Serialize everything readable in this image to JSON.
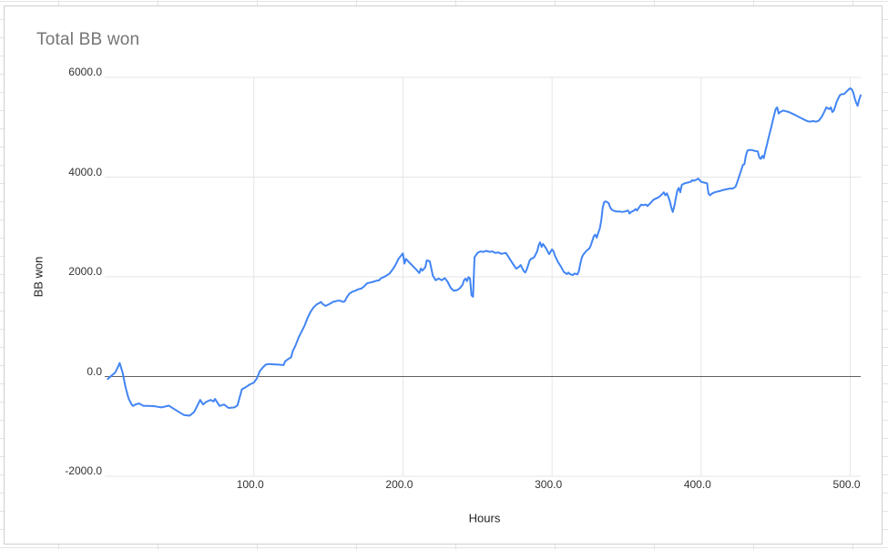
{
  "chart": {
    "title": "Total BB won",
    "x_axis": {
      "title": "Hours",
      "ticks": [
        {
          "label": "100.0",
          "value": 100
        },
        {
          "label": "200.0",
          "value": 200
        },
        {
          "label": "300.0",
          "value": 300
        },
        {
          "label": "400.0",
          "value": 400
        },
        {
          "label": "500.0",
          "value": 500
        }
      ]
    },
    "y_axis": {
      "title": "BB won",
      "ticks": [
        {
          "label": "6000.0",
          "value": 6000
        },
        {
          "label": "4000.0",
          "value": 4000
        },
        {
          "label": "2000.0",
          "value": 2000
        },
        {
          "label": "0.0",
          "value": 0
        },
        {
          "label": "-2000.0",
          "value": -2000
        }
      ]
    },
    "colors": {
      "series_line": "#4285f4",
      "gridline": "#e6e6e6",
      "zero_line": "#616161",
      "title_text": "#757575",
      "card_border": "#cfcfcf"
    }
  },
  "chart_data": {
    "type": "line",
    "title": "Total BB won",
    "xlabel": "Hours",
    "ylabel": "BB won",
    "xlim": [
      0,
      507
    ],
    "ylim": [
      -2000,
      6000
    ],
    "x_tick_step": 100,
    "y_tick_step": 2000,
    "grid": true,
    "legend": false,
    "series": [
      {
        "name": "Total BB won",
        "color": "#4285f4",
        "points": [
          [
            2,
            -50
          ],
          [
            5,
            30
          ],
          [
            7,
            80
          ],
          [
            9,
            200
          ],
          [
            10,
            270
          ],
          [
            12,
            80
          ],
          [
            14,
            -220
          ],
          [
            16,
            -440
          ],
          [
            18,
            -560
          ],
          [
            19,
            -590
          ],
          [
            21,
            -555
          ],
          [
            23,
            -540
          ],
          [
            26,
            -590
          ],
          [
            30,
            -590
          ],
          [
            34,
            -600
          ],
          [
            38,
            -620
          ],
          [
            43,
            -585
          ],
          [
            48,
            -680
          ],
          [
            53,
            -770
          ],
          [
            57,
            -785
          ],
          [
            60,
            -710
          ],
          [
            64,
            -470
          ],
          [
            66,
            -560
          ],
          [
            68,
            -510
          ],
          [
            71,
            -470
          ],
          [
            73,
            -500
          ],
          [
            74,
            -450
          ],
          [
            77,
            -590
          ],
          [
            80,
            -560
          ],
          [
            83,
            -630
          ],
          [
            87,
            -620
          ],
          [
            89,
            -580
          ],
          [
            92,
            -255
          ],
          [
            94,
            -225
          ],
          [
            97,
            -165
          ],
          [
            100,
            -120
          ],
          [
            102,
            -40
          ],
          [
            104,
            110
          ],
          [
            106,
            180
          ],
          [
            108,
            240
          ],
          [
            110,
            250
          ],
          [
            113,
            245
          ],
          [
            116,
            240
          ],
          [
            120,
            230
          ],
          [
            121,
            305
          ],
          [
            123,
            350
          ],
          [
            125,
            385
          ],
          [
            126,
            505
          ],
          [
            128,
            625
          ],
          [
            130,
            780
          ],
          [
            132,
            900
          ],
          [
            134,
            1020
          ],
          [
            136,
            1170
          ],
          [
            138,
            1295
          ],
          [
            140,
            1385
          ],
          [
            142,
            1445
          ],
          [
            144,
            1475
          ],
          [
            145,
            1495
          ],
          [
            146,
            1460
          ],
          [
            148,
            1415
          ],
          [
            151,
            1460
          ],
          [
            153,
            1495
          ],
          [
            156,
            1520
          ],
          [
            158,
            1520
          ],
          [
            160,
            1495
          ],
          [
            161,
            1510
          ],
          [
            162,
            1570
          ],
          [
            164,
            1660
          ],
          [
            166,
            1700
          ],
          [
            168,
            1720
          ],
          [
            170,
            1750
          ],
          [
            172,
            1765
          ],
          [
            174,
            1810
          ],
          [
            176,
            1870
          ],
          [
            178,
            1885
          ],
          [
            180,
            1900
          ],
          [
            182,
            1920
          ],
          [
            184,
            1930
          ],
          [
            185,
            1965
          ],
          [
            187,
            1995
          ],
          [
            189,
            2025
          ],
          [
            191,
            2065
          ],
          [
            193,
            2145
          ],
          [
            195,
            2235
          ],
          [
            197,
            2360
          ],
          [
            200,
            2470
          ],
          [
            201,
            2265
          ],
          [
            202,
            2360
          ],
          [
            204,
            2295
          ],
          [
            206,
            2235
          ],
          [
            209,
            2145
          ],
          [
            211,
            2075
          ],
          [
            212,
            2165
          ],
          [
            213,
            2125
          ],
          [
            215,
            2190
          ],
          [
            216,
            2330
          ],
          [
            218,
            2310
          ],
          [
            220,
            2025
          ],
          [
            222,
            1930
          ],
          [
            224,
            1965
          ],
          [
            226,
            1930
          ],
          [
            228,
            1975
          ],
          [
            230,
            1900
          ],
          [
            232,
            1780
          ],
          [
            234,
            1720
          ],
          [
            236,
            1730
          ],
          [
            238,
            1765
          ],
          [
            240,
            1840
          ],
          [
            241,
            1930
          ],
          [
            242,
            1965
          ],
          [
            243,
            1915
          ],
          [
            244,
            1995
          ],
          [
            245,
            1965
          ],
          [
            246,
            1630
          ],
          [
            247,
            1600
          ],
          [
            248,
            2390
          ],
          [
            250,
            2480
          ],
          [
            252,
            2510
          ],
          [
            254,
            2500
          ],
          [
            256,
            2520
          ],
          [
            258,
            2500
          ],
          [
            260,
            2510
          ],
          [
            262,
            2480
          ],
          [
            264,
            2490
          ],
          [
            266,
            2460
          ],
          [
            269,
            2480
          ],
          [
            271,
            2390
          ],
          [
            273,
            2295
          ],
          [
            275,
            2205
          ],
          [
            276,
            2165
          ],
          [
            278,
            2205
          ],
          [
            279,
            2235
          ],
          [
            281,
            2115
          ],
          [
            282,
            2085
          ],
          [
            283,
            2145
          ],
          [
            285,
            2330
          ],
          [
            286,
            2360
          ],
          [
            288,
            2390
          ],
          [
            290,
            2510
          ],
          [
            291,
            2630
          ],
          [
            292,
            2690
          ],
          [
            293,
            2600
          ],
          [
            294,
            2660
          ],
          [
            296,
            2570
          ],
          [
            298,
            2455
          ],
          [
            300,
            2550
          ],
          [
            301,
            2510
          ],
          [
            302,
            2420
          ],
          [
            304,
            2295
          ],
          [
            306,
            2205
          ],
          [
            308,
            2095
          ],
          [
            310,
            2055
          ],
          [
            311,
            2085
          ],
          [
            312,
            2055
          ],
          [
            314,
            2035
          ],
          [
            315,
            2065
          ],
          [
            317,
            2050
          ],
          [
            318,
            2115
          ],
          [
            319,
            2265
          ],
          [
            320,
            2390
          ],
          [
            321,
            2450
          ],
          [
            322,
            2480
          ],
          [
            323,
            2520
          ],
          [
            325,
            2570
          ],
          [
            326,
            2630
          ],
          [
            327,
            2720
          ],
          [
            328,
            2815
          ],
          [
            329,
            2845
          ],
          [
            330,
            2785
          ],
          [
            331,
            2885
          ],
          [
            332,
            2965
          ],
          [
            333,
            3120
          ],
          [
            334,
            3390
          ],
          [
            335,
            3500
          ],
          [
            336,
            3515
          ],
          [
            337,
            3495
          ],
          [
            338,
            3480
          ],
          [
            339,
            3390
          ],
          [
            340,
            3350
          ],
          [
            341,
            3330
          ],
          [
            343,
            3312
          ],
          [
            345,
            3312
          ],
          [
            347,
            3300
          ],
          [
            349,
            3312
          ],
          [
            351,
            3330
          ],
          [
            352,
            3270
          ],
          [
            353,
            3300
          ],
          [
            355,
            3330
          ],
          [
            356,
            3360
          ],
          [
            357,
            3330
          ],
          [
            358,
            3375
          ],
          [
            359,
            3420
          ],
          [
            360,
            3450
          ],
          [
            361,
            3435
          ],
          [
            363,
            3450
          ],
          [
            364,
            3420
          ],
          [
            366,
            3480
          ],
          [
            368,
            3545
          ],
          [
            370,
            3575
          ],
          [
            372,
            3605
          ],
          [
            374,
            3665
          ],
          [
            375,
            3695
          ],
          [
            376,
            3635
          ],
          [
            377,
            3675
          ],
          [
            378,
            3605
          ],
          [
            379,
            3515
          ],
          [
            380,
            3390
          ],
          [
            381,
            3300
          ],
          [
            382,
            3420
          ],
          [
            383,
            3575
          ],
          [
            384,
            3725
          ],
          [
            385,
            3785
          ],
          [
            386,
            3695
          ],
          [
            387,
            3845
          ],
          [
            389,
            3875
          ],
          [
            391,
            3890
          ],
          [
            393,
            3905
          ],
          [
            394,
            3940
          ],
          [
            395,
            3925
          ],
          [
            397,
            3950
          ],
          [
            398,
            3970
          ],
          [
            399,
            3940
          ],
          [
            400,
            3905
          ],
          [
            402,
            3890
          ],
          [
            404,
            3875
          ],
          [
            404.5,
            3755
          ],
          [
            405,
            3665
          ],
          [
            406,
            3635
          ],
          [
            407,
            3665
          ],
          [
            409,
            3695
          ],
          [
            411,
            3710
          ],
          [
            413,
            3725
          ],
          [
            415,
            3745
          ],
          [
            417,
            3755
          ],
          [
            419,
            3770
          ],
          [
            421,
            3770
          ],
          [
            422,
            3785
          ],
          [
            423,
            3805
          ],
          [
            424,
            3875
          ],
          [
            425,
            3970
          ],
          [
            426,
            4060
          ],
          [
            427,
            4150
          ],
          [
            428,
            4245
          ],
          [
            429,
            4255
          ],
          [
            430,
            4425
          ],
          [
            431,
            4530
          ],
          [
            432,
            4545
          ],
          [
            434,
            4545
          ],
          [
            436,
            4525
          ],
          [
            438,
            4515
          ],
          [
            439,
            4395
          ],
          [
            440,
            4365
          ],
          [
            441,
            4425
          ],
          [
            442,
            4380
          ],
          [
            443,
            4515
          ],
          [
            444,
            4635
          ],
          [
            445,
            4760
          ],
          [
            446,
            4880
          ],
          [
            447,
            5000
          ],
          [
            448,
            5125
          ],
          [
            449,
            5245
          ],
          [
            450,
            5365
          ],
          [
            451,
            5400
          ],
          [
            452,
            5275
          ],
          [
            453,
            5305
          ],
          [
            455,
            5335
          ],
          [
            457,
            5320
          ],
          [
            459,
            5305
          ],
          [
            461,
            5275
          ],
          [
            463,
            5245
          ],
          [
            465,
            5215
          ],
          [
            467,
            5185
          ],
          [
            469,
            5155
          ],
          [
            471,
            5125
          ],
          [
            473,
            5110
          ],
          [
            475,
            5125
          ],
          [
            477,
            5110
          ],
          [
            479,
            5135
          ],
          [
            481,
            5215
          ],
          [
            482,
            5275
          ],
          [
            483,
            5335
          ],
          [
            484,
            5400
          ],
          [
            485,
            5380
          ],
          [
            486,
            5365
          ],
          [
            487,
            5400
          ],
          [
            488,
            5305
          ],
          [
            489,
            5335
          ],
          [
            490,
            5425
          ],
          [
            491,
            5520
          ],
          [
            492,
            5580
          ],
          [
            493,
            5640
          ],
          [
            494,
            5660
          ],
          [
            496,
            5670
          ],
          [
            497,
            5700
          ],
          [
            498,
            5730
          ],
          [
            499,
            5760
          ],
          [
            500,
            5780
          ],
          [
            501,
            5760
          ],
          [
            502,
            5700
          ],
          [
            503,
            5580
          ],
          [
            504,
            5490
          ],
          [
            505,
            5430
          ],
          [
            506,
            5560
          ],
          [
            507,
            5640
          ]
        ]
      }
    ]
  }
}
